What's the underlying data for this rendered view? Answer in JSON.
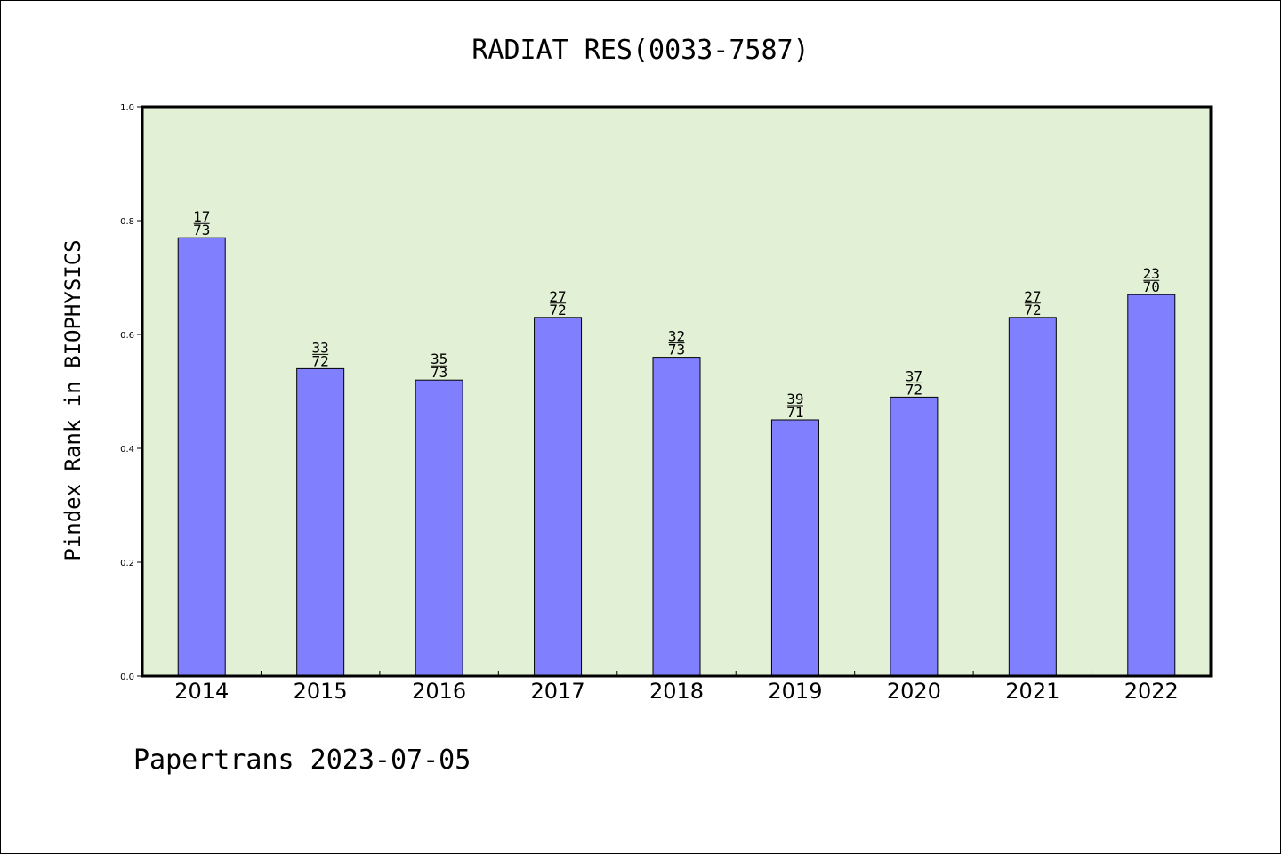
{
  "chart_data": {
    "type": "bar",
    "title": "RADIAT RES(0033-7587)",
    "xlabel": "",
    "ylabel": "Pindex Rank in BIOPHYSICS",
    "ylim": [
      0,
      1.0
    ],
    "yticks": [
      "0.0",
      "0.2",
      "0.4",
      "0.6",
      "0.8",
      "1.0"
    ],
    "categories": [
      "2014",
      "2015",
      "2016",
      "2017",
      "2018",
      "2019",
      "2020",
      "2021",
      "2022"
    ],
    "values": [
      0.77,
      0.54,
      0.52,
      0.63,
      0.56,
      0.45,
      0.49,
      0.63,
      0.67
    ],
    "rank": [
      "17",
      "33",
      "35",
      "27",
      "32",
      "39",
      "37",
      "27",
      "23"
    ],
    "total": [
      "73",
      "72",
      "73",
      "72",
      "73",
      "71",
      "72",
      "72",
      "70"
    ],
    "grid": false,
    "footer": "Papertrans 2023-07-05",
    "colors": {
      "bar": "#8080ff",
      "plot_bg": "#e2f0d5",
      "edge": "#000000"
    }
  }
}
